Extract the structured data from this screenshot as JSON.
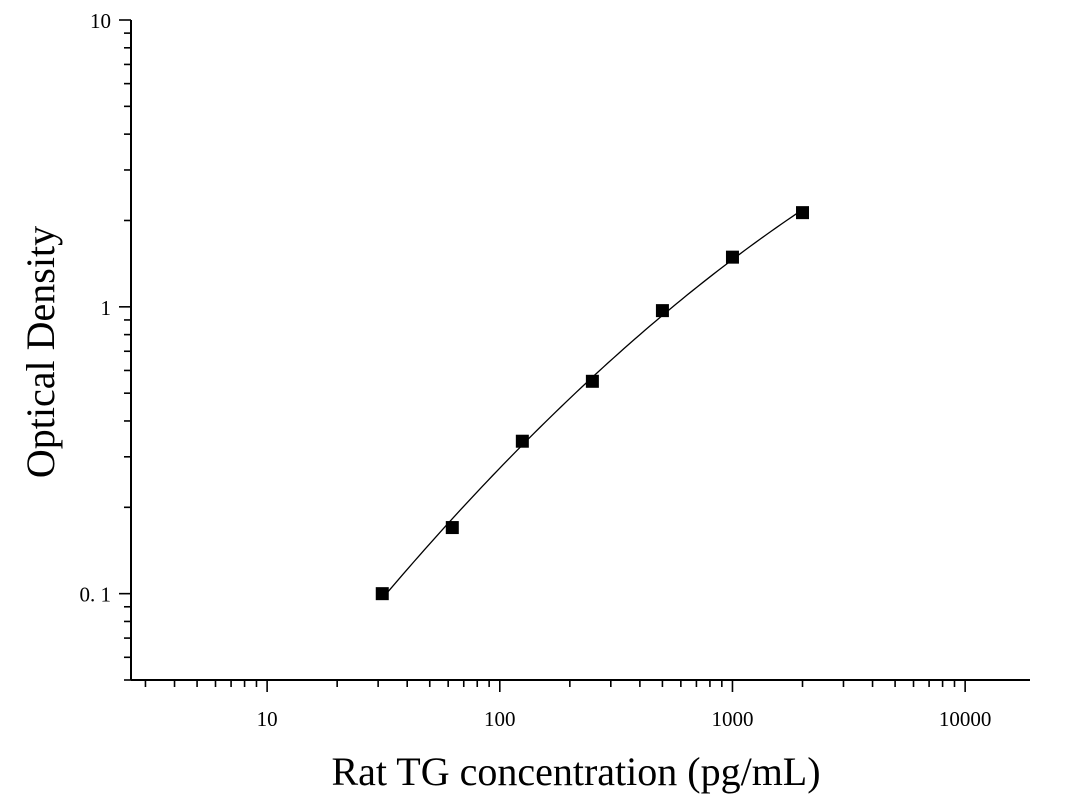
{
  "chart_data": {
    "type": "scatter",
    "title": "",
    "xlabel": "Rat TG concentration (pg/mL)",
    "ylabel": "Optical Density",
    "xscale": "log",
    "yscale": "log",
    "xlim": [
      2.6,
      19000
    ],
    "ylim": [
      0.05,
      10
    ],
    "x_tick_labels": [
      {
        "value": 10,
        "label": "10"
      },
      {
        "value": 100,
        "label": "100"
      },
      {
        "value": 1000,
        "label": "1000"
      },
      {
        "value": 10000,
        "label": "10000"
      }
    ],
    "y_tick_labels": [
      {
        "value": 0.1,
        "label": "0. 1"
      },
      {
        "value": 1,
        "label": "1"
      },
      {
        "value": 10,
        "label": "10"
      }
    ],
    "grid": false,
    "legend": "none",
    "series": [
      {
        "marker": "square",
        "color": "#000000",
        "fit_line": true,
        "points": [
          {
            "x": 31.25,
            "y": 0.1
          },
          {
            "x": 62.5,
            "y": 0.17
          },
          {
            "x": 125,
            "y": 0.34
          },
          {
            "x": 250,
            "y": 0.55
          },
          {
            "x": 500,
            "y": 0.97
          },
          {
            "x": 1000,
            "y": 1.49
          },
          {
            "x": 2000,
            "y": 2.13
          }
        ]
      }
    ]
  }
}
